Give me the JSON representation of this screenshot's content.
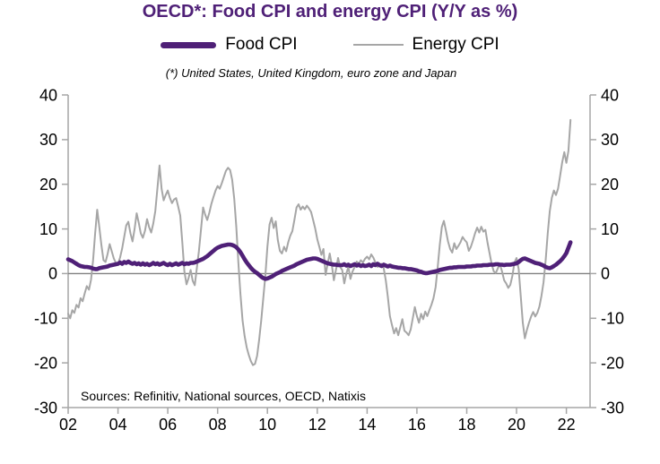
{
  "title": "OECD*: Food CPI and energy CPI (Y/Y as %)",
  "subtitle": "(*) United States, United Kingdom, euro zone and Japan",
  "source_note": "Sources: Refinitiv, National sources, OECD, Natixis",
  "legend": {
    "items": [
      {
        "label": "Food CPI",
        "color": "#4f2077",
        "style": "thick"
      },
      {
        "label": "Energy CPI",
        "color": "#a6a6a6",
        "style": "thin"
      }
    ]
  },
  "colors": {
    "purple": "#4f2077",
    "gray": "#a6a6a6",
    "zero_line": "#808080",
    "text": "#000000",
    "background": "#ffffff"
  },
  "chart_data": {
    "type": "line",
    "title": "OECD*: Food CPI and energy CPI (Y/Y as %)",
    "xlabel": "",
    "ylabel": "Y/Y %",
    "x_unit": "decimal year, monthly points",
    "x_start": 2002.0,
    "x_step": 0.083333,
    "xlim": [
      2002.0,
      2022.95
    ],
    "ylim": [
      -30,
      40
    ],
    "grid": false,
    "zero_line": true,
    "legend_position": "top-center",
    "dual_axis_mirrored": true,
    "y_ticks": [
      40,
      30,
      20,
      10,
      0,
      -10,
      -20,
      -30
    ],
    "x_ticks": [
      {
        "year": 2002,
        "label": "02"
      },
      {
        "year": 2004,
        "label": "04"
      },
      {
        "year": 2006,
        "label": "06"
      },
      {
        "year": 2008,
        "label": "08"
      },
      {
        "year": 2010,
        "label": "10"
      },
      {
        "year": 2012,
        "label": "12"
      },
      {
        "year": 2014,
        "label": "14"
      },
      {
        "year": 2016,
        "label": "16"
      },
      {
        "year": 2018,
        "label": "18"
      },
      {
        "year": 2020,
        "label": "20"
      },
      {
        "year": 2022,
        "label": "22"
      }
    ],
    "series": [
      {
        "name": "Food CPI",
        "color": "#4f2077",
        "stroke_width": 4.6,
        "values": [
          3.2,
          3.0,
          2.8,
          2.5,
          2.2,
          1.9,
          1.7,
          1.6,
          1.5,
          1.5,
          1.4,
          1.3,
          1.1,
          1.0,
          1.0,
          1.2,
          1.3,
          1.4,
          1.5,
          1.6,
          1.8,
          1.9,
          2.0,
          2.1,
          2.2,
          2.5,
          2.2,
          2.6,
          2.4,
          2.7,
          2.4,
          2.2,
          2.4,
          2.1,
          2.3,
          2.0,
          2.3,
          2.0,
          2.2,
          1.9,
          2.1,
          2.4,
          2.1,
          2.3,
          2.0,
          2.2,
          2.4,
          2.1,
          1.9,
          2.2,
          1.9,
          2.1,
          2.3,
          2.0,
          2.2,
          2.4,
          2.1,
          2.3,
          2.2,
          2.4,
          2.4,
          2.5,
          2.7,
          2.9,
          3.1,
          3.3,
          3.6,
          3.9,
          4.3,
          4.7,
          5.1,
          5.5,
          5.8,
          6.0,
          6.2,
          6.3,
          6.4,
          6.5,
          6.5,
          6.4,
          6.2,
          5.9,
          5.4,
          4.8,
          4.0,
          3.2,
          2.5,
          1.9,
          1.3,
          0.8,
          0.4,
          0.1,
          -0.3,
          -0.7,
          -1.0,
          -1.2,
          -1.1,
          -0.9,
          -0.7,
          -0.4,
          -0.1,
          0.1,
          0.3,
          0.6,
          0.8,
          1.0,
          1.2,
          1.4,
          1.6,
          1.8,
          2.1,
          2.3,
          2.5,
          2.7,
          2.9,
          3.1,
          3.2,
          3.3,
          3.4,
          3.4,
          3.3,
          3.1,
          2.9,
          2.7,
          2.5,
          2.3,
          2.2,
          2.1,
          2.0,
          2.0,
          1.9,
          1.9,
          1.9,
          2.1,
          1.8,
          2.0,
          1.7,
          1.9,
          2.1,
          1.8,
          2.0,
          1.7,
          1.9,
          1.7,
          1.8,
          2.0,
          1.7,
          2.1,
          1.9,
          2.2,
          1.9,
          1.7,
          2.0,
          1.8,
          1.6,
          1.8,
          1.6,
          1.5,
          1.4,
          1.3,
          1.3,
          1.2,
          1.2,
          1.1,
          1.0,
          1.0,
          0.9,
          0.8,
          0.7,
          0.5,
          0.4,
          0.2,
          0.1,
          0.1,
          0.2,
          0.3,
          0.4,
          0.5,
          0.6,
          0.8,
          0.9,
          1.0,
          1.1,
          1.2,
          1.3,
          1.3,
          1.4,
          1.4,
          1.5,
          1.5,
          1.5,
          1.5,
          1.6,
          1.6,
          1.6,
          1.7,
          1.7,
          1.8,
          1.8,
          1.8,
          1.9,
          1.9,
          1.9,
          2.0,
          2.0,
          2.0,
          2.1,
          2.1,
          2.0,
          2.0,
          1.9,
          2.0,
          2.0,
          2.0,
          2.1,
          2.2,
          2.3,
          2.6,
          3.0,
          3.3,
          3.4,
          3.2,
          3.0,
          2.8,
          2.6,
          2.4,
          2.3,
          2.2,
          2.0,
          1.8,
          1.5,
          1.3,
          1.2,
          1.4,
          1.7,
          2.0,
          2.4,
          2.8,
          3.3,
          3.9,
          4.6,
          5.8,
          7.0
        ]
      },
      {
        "name": "Energy CPI",
        "color": "#a6a6a6",
        "stroke_width": 2,
        "values": [
          -9.0,
          -10.0,
          -8.2,
          -8.8,
          -7.0,
          -7.6,
          -5.5,
          -6.2,
          -4.4,
          -2.8,
          -3.6,
          -1.4,
          3.0,
          9.0,
          14.3,
          10.5,
          6.5,
          3.0,
          2.6,
          4.4,
          6.6,
          5.0,
          3.4,
          2.4,
          2.2,
          3.6,
          5.6,
          8.2,
          10.8,
          11.6,
          9.0,
          7.2,
          10.0,
          13.5,
          11.4,
          9.0,
          8.0,
          9.6,
          12.2,
          10.4,
          9.2,
          11.2,
          14.0,
          19.0,
          24.2,
          19.0,
          16.4,
          17.6,
          18.6,
          17.0,
          15.8,
          16.6,
          16.9,
          15.0,
          13.0,
          7.0,
          0.5,
          -2.4,
          -1.0,
          0.8,
          -1.6,
          -2.6,
          1.2,
          5.0,
          10.0,
          14.8,
          13.2,
          12.0,
          13.6,
          15.6,
          17.2,
          18.6,
          19.6,
          19.0,
          20.2,
          21.6,
          23.0,
          23.7,
          23.2,
          21.0,
          16.8,
          10.5,
          2.5,
          -4.5,
          -10.5,
          -14.0,
          -16.5,
          -18.2,
          -19.6,
          -20.5,
          -20.2,
          -18.4,
          -14.8,
          -10.5,
          -5.5,
          -0.5,
          6.0,
          11.0,
          12.5,
          10.2,
          11.7,
          7.5,
          5.1,
          4.5,
          6.0,
          5.0,
          7.0,
          8.5,
          9.5,
          12.0,
          14.8,
          15.5,
          14.3,
          15.0,
          14.4,
          15.2,
          14.6,
          13.8,
          12.0,
          10.1,
          7.7,
          6.0,
          4.2,
          5.5,
          -0.3,
          2.2,
          4.5,
          2.0,
          -1.5,
          0.8,
          3.5,
          1.5,
          0.8,
          -2.2,
          0.0,
          1.5,
          -1.2,
          0.5,
          1.5,
          2.7,
          2.2,
          3.0,
          2.5,
          3.3,
          3.8,
          3.2,
          4.3,
          3.6,
          2.5,
          1.5,
          1.8,
          2.2,
          1.2,
          -1.5,
          -5.2,
          -9.5,
          -11.5,
          -13.4,
          -12.2,
          -13.8,
          -12.0,
          -10.2,
          -12.8,
          -13.2,
          -13.8,
          -12.5,
          -10.0,
          -7.5,
          -9.5,
          -11.0,
          -9.0,
          -10.2,
          -8.5,
          -9.5,
          -8.2,
          -7.0,
          -5.5,
          -3.0,
          1.4,
          6.4,
          10.4,
          11.8,
          9.6,
          7.2,
          5.5,
          4.7,
          6.8,
          5.5,
          6.2,
          7.0,
          8.2,
          7.5,
          7.0,
          5.1,
          6.0,
          7.4,
          9.0,
          10.3,
          9.2,
          10.5,
          9.4,
          9.8,
          7.0,
          4.5,
          2.1,
          0.5,
          0.1,
          1.2,
          2.1,
          0.5,
          -1.5,
          -2.2,
          -3.2,
          -2.5,
          -0.5,
          2.5,
          3.5,
          1.0,
          -5.0,
          -11.0,
          -14.5,
          -12.6,
          -11.0,
          -9.6,
          -8.6,
          -9.6,
          -8.8,
          -7.4,
          -5.0,
          -2.0,
          3.0,
          9.0,
          14.0,
          17.0,
          18.6,
          17.6,
          19.0,
          22.0,
          25.0,
          27.2,
          24.8,
          27.5,
          34.4
        ]
      }
    ]
  }
}
